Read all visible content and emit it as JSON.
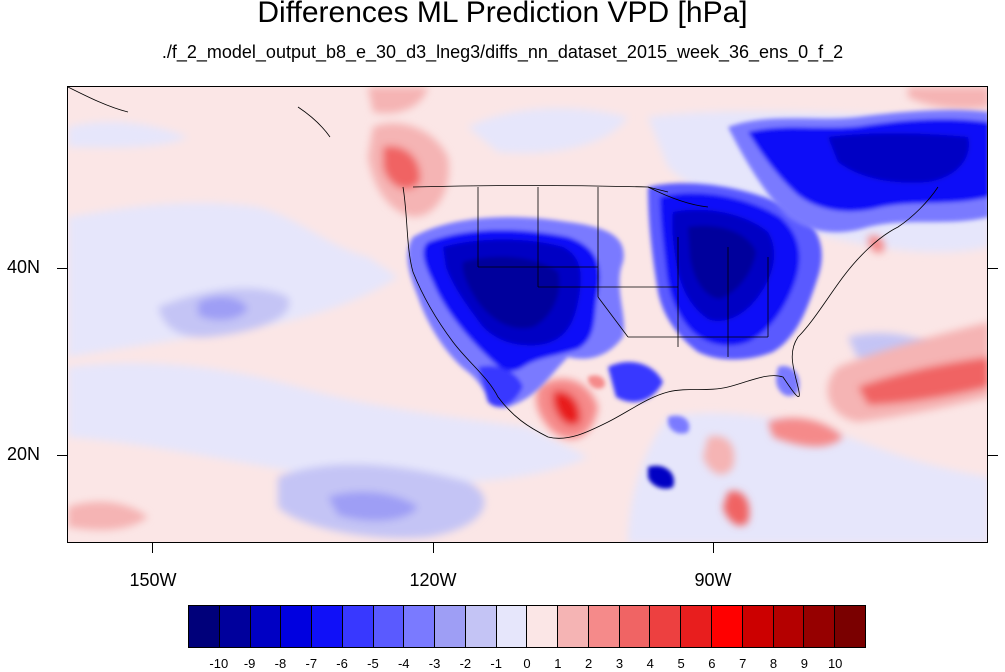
{
  "title": "Differences ML Prediction VPD [hPa]",
  "subtitle": "./f_2_model_output_b8_e_30_d3_lneg3/diffs_nn_dataset_2015_week_36_ens_0_f_2",
  "map": {
    "lat_labels": [
      "40N",
      "20N"
    ],
    "lon_labels": [
      "150W",
      "120W",
      "90W"
    ],
    "background_color": "#fbe6e6",
    "strong_negative_color": "#0000b8",
    "strong_positive_color": "#e01818"
  },
  "colorbar": {
    "colors": [
      "#00007a",
      "#00009c",
      "#0000c4",
      "#0000e0",
      "#1010f8",
      "#3838ff",
      "#5a5aff",
      "#7a7aff",
      "#9e9ef5",
      "#c4c4f5",
      "#e6e6fb",
      "#fbe6e6",
      "#f5b4b4",
      "#f58a8a",
      "#f06464",
      "#ed4040",
      "#e81e1e",
      "#ff0000",
      "#cc0000",
      "#b40000",
      "#960000",
      "#7a0000"
    ],
    "labels": [
      "-10",
      "-9",
      "-8",
      "-7",
      "-6",
      "-5",
      "-4",
      "-3",
      "-2",
      "-1",
      "0",
      "1",
      "2",
      "3",
      "4",
      "5",
      "6",
      "7",
      "8",
      "9",
      "10"
    ]
  }
}
